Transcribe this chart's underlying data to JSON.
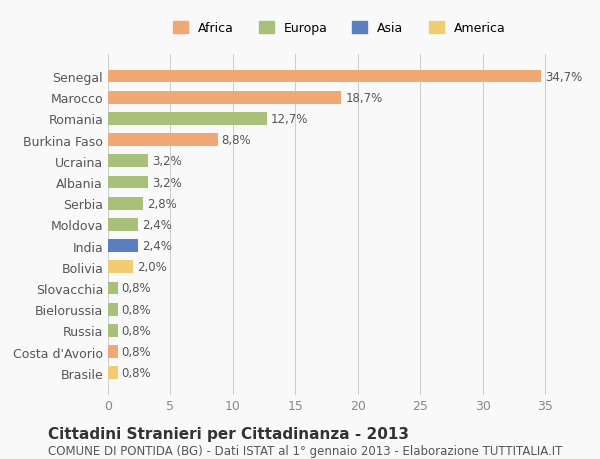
{
  "countries": [
    "Senegal",
    "Marocco",
    "Romania",
    "Burkina Faso",
    "Ucraina",
    "Albania",
    "Serbia",
    "Moldova",
    "India",
    "Bolivia",
    "Slovacchia",
    "Bielorussia",
    "Russia",
    "Costa d'Avorio",
    "Brasile"
  ],
  "values": [
    34.7,
    18.7,
    12.7,
    8.8,
    3.2,
    3.2,
    2.8,
    2.4,
    2.4,
    2.0,
    0.8,
    0.8,
    0.8,
    0.8,
    0.8
  ],
  "labels": [
    "34,7%",
    "18,7%",
    "12,7%",
    "8,8%",
    "3,2%",
    "3,2%",
    "2,8%",
    "2,4%",
    "2,4%",
    "2,0%",
    "0,8%",
    "0,8%",
    "0,8%",
    "0,8%",
    "0,8%"
  ],
  "continents": [
    "Africa",
    "Africa",
    "Europa",
    "Africa",
    "Europa",
    "Europa",
    "Europa",
    "Europa",
    "Asia",
    "America",
    "Europa",
    "Europa",
    "Europa",
    "Africa",
    "America"
  ],
  "colors": {
    "Africa": "#F0A875",
    "Europa": "#A8C07A",
    "Asia": "#5B7FBE",
    "America": "#F0CC75"
  },
  "title": "Cittadini Stranieri per Cittadinanza - 2013",
  "subtitle": "COMUNE DI PONTIDA (BG) - Dati ISTAT al 1° gennaio 2013 - Elaborazione TUTTITALIA.IT",
  "xlim": [
    0,
    37
  ],
  "xticks": [
    0,
    5,
    10,
    15,
    20,
    25,
    30,
    35
  ],
  "background_color": "#f9f9f9",
  "bar_height": 0.6,
  "label_fontsize": 8.5,
  "title_fontsize": 11,
  "subtitle_fontsize": 8.5,
  "legend_order": [
    "Africa",
    "Europa",
    "Asia",
    "America"
  ]
}
